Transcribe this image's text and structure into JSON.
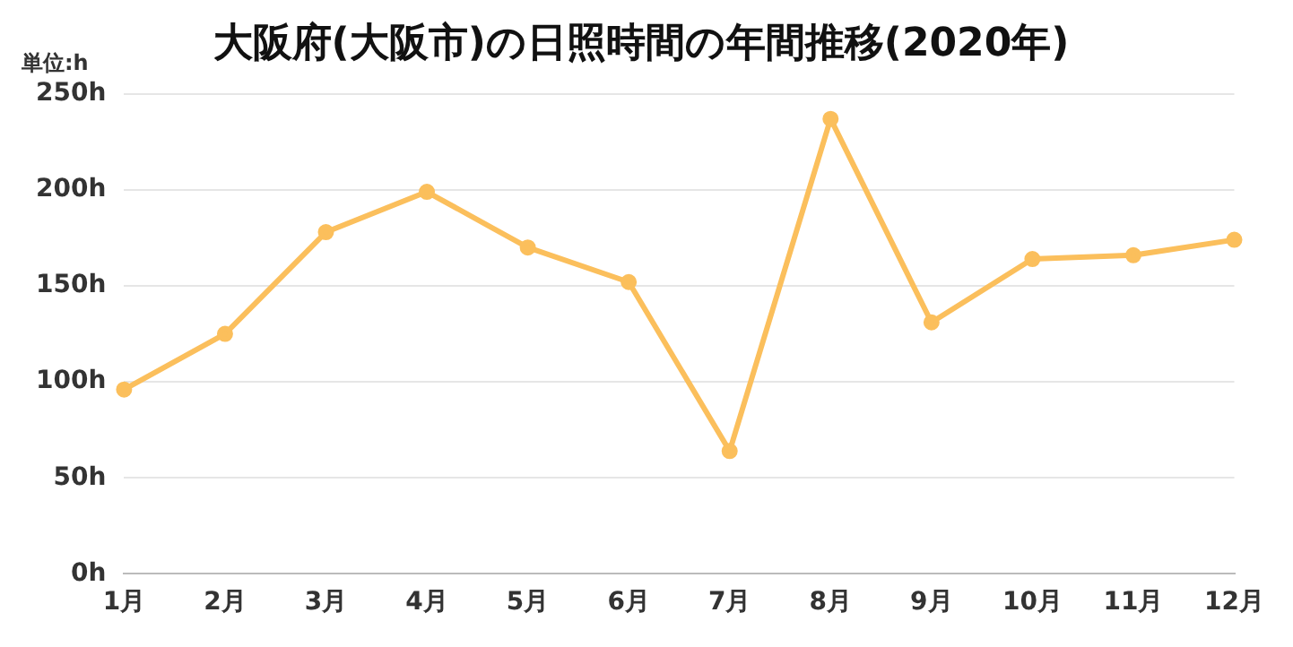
{
  "chart_data": {
    "type": "line",
    "title": "大阪府(大阪市)の日照時間の年間推移(2020年)",
    "annotations": [
      "単位:h"
    ],
    "categories": [
      "1月",
      "2月",
      "3月",
      "4月",
      "5月",
      "6月",
      "7月",
      "8月",
      "9月",
      "10月",
      "11月",
      "12月"
    ],
    "series": [
      {
        "color": "#fbbf5c",
        "values": [
          96,
          125,
          178,
          199,
          170,
          152,
          64,
          237,
          131,
          164,
          166,
          174
        ]
      }
    ],
    "ylim": [
      0,
      250
    ],
    "yticks": [
      {
        "value": 0,
        "label": "0h"
      },
      {
        "value": 50,
        "label": "50h"
      },
      {
        "value": 100,
        "label": "100h"
      },
      {
        "value": 150,
        "label": "150h"
      },
      {
        "value": 200,
        "label": "200h"
      },
      {
        "value": 250,
        "label": "250h"
      }
    ],
    "grid": "y",
    "legend": false,
    "marker": "circle",
    "line_style": "solid"
  }
}
